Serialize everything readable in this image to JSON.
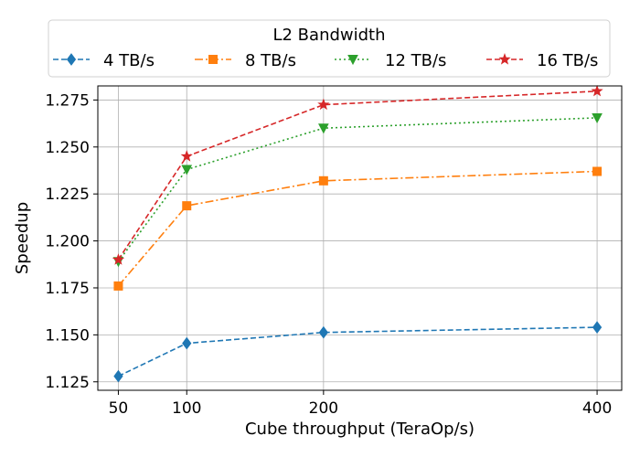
{
  "chart_data": {
    "type": "line",
    "title": "",
    "xlabel": "Cube throughput (TeraOp/s)",
    "ylabel": "Speedup",
    "x": [
      50,
      100,
      200,
      400
    ],
    "x_ticks": [
      50,
      100,
      200,
      400
    ],
    "y_ticks": [
      1.125,
      1.15,
      1.175,
      1.2,
      1.225,
      1.25,
      1.275
    ],
    "y_tick_labels": [
      "1.125",
      "1.150",
      "1.175",
      "1.200",
      "1.225",
      "1.250",
      "1.275"
    ],
    "xlim": [
      35,
      418
    ],
    "ylim": [
      1.1205,
      1.2825
    ],
    "grid": true,
    "legend": {
      "title": "L2 Bandwidth",
      "placement": "top",
      "columns": 4
    },
    "series": [
      {
        "name": "4 TB/s",
        "values": [
          1.128,
          1.1455,
          1.1513,
          1.154
        ],
        "color": "#1f77b4",
        "marker": "diamond",
        "line_style": "dashed"
      },
      {
        "name": "8 TB/s",
        "values": [
          1.176,
          1.2187,
          1.232,
          1.237
        ],
        "color": "#ff7f0e",
        "marker": "square",
        "line_style": "dashdot"
      },
      {
        "name": "12 TB/s",
        "values": [
          1.189,
          1.238,
          1.26,
          1.2655
        ],
        "color": "#2ca02c",
        "marker": "triangle-down",
        "line_style": "dotted"
      },
      {
        "name": "16 TB/s",
        "values": [
          1.19,
          1.245,
          1.2725,
          1.2797
        ],
        "color": "#d62728",
        "marker": "star",
        "line_style": "dashed"
      }
    ]
  }
}
